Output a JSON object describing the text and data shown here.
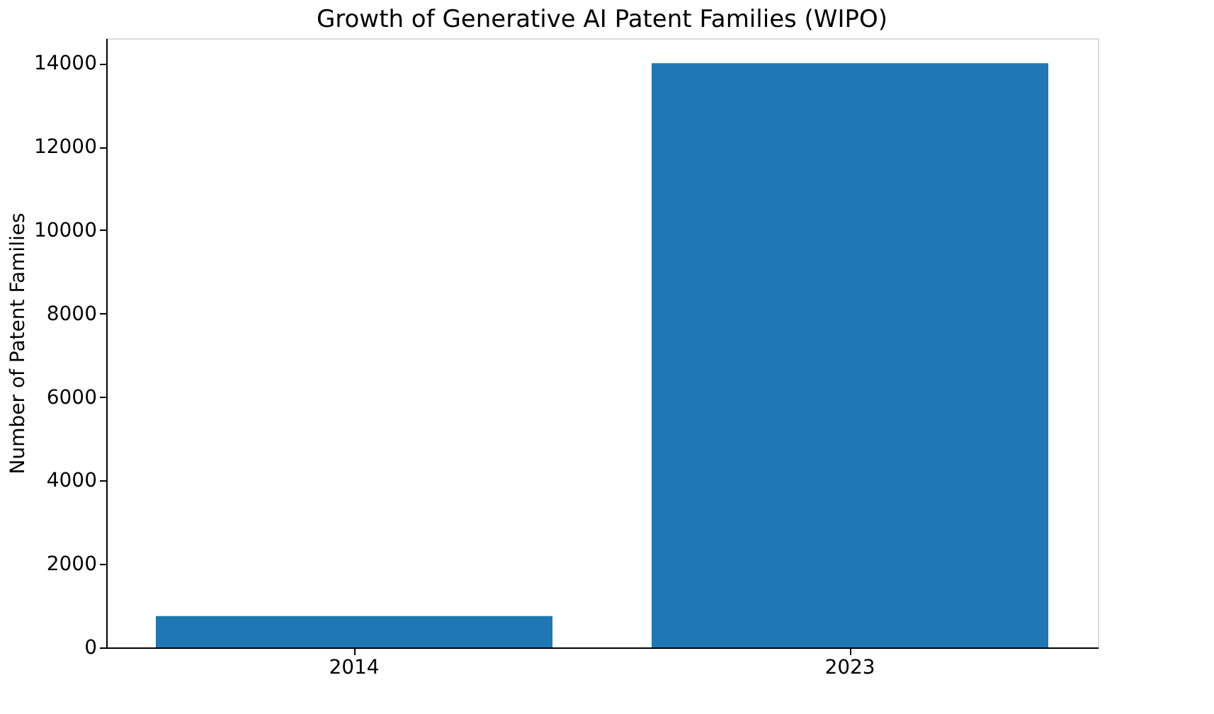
{
  "chart_data": {
    "type": "bar",
    "title": "Growth of Generative AI Patent Families (WIPO)",
    "ylabel": "Number of Patent Families",
    "categories": [
      "2014",
      "2023"
    ],
    "values": [
      750,
      14000
    ],
    "color": "#1f77b4",
    "ylim": [
      0,
      14600
    ],
    "yticks": [
      0,
      2000,
      4000,
      6000,
      8000,
      10000,
      12000,
      14000
    ],
    "grid": false
  }
}
